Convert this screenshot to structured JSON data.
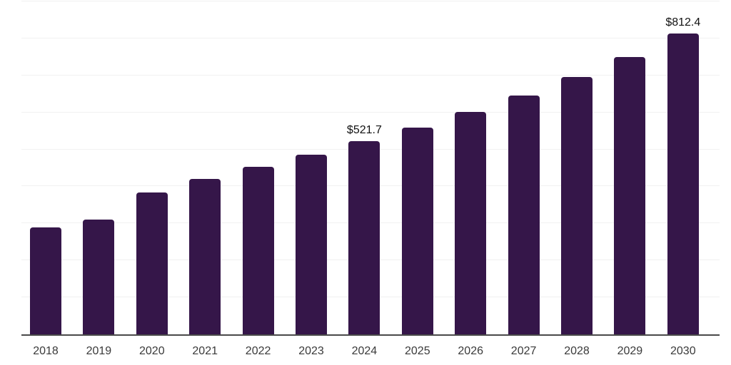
{
  "chart_data": {
    "type": "bar",
    "title": "",
    "xlabel": "",
    "ylabel": "",
    "categories": [
      "2018",
      "2019",
      "2020",
      "2021",
      "2022",
      "2023",
      "2024",
      "2025",
      "2026",
      "2027",
      "2028",
      "2029",
      "2030"
    ],
    "values": [
      290,
      310,
      383,
      421,
      452,
      485,
      521.7,
      558,
      601,
      645,
      695,
      750,
      812.4
    ],
    "annotations": [
      {
        "category": "2024",
        "text": "$521.7"
      },
      {
        "category": "2030",
        "text": "$812.4"
      }
    ],
    "ylim": [
      0,
      900
    ],
    "gridline_step": 100,
    "grid": true,
    "legend": false,
    "y_axis_labels_visible": false
  },
  "colors": {
    "bar": "#351649",
    "gridline": "#f1f1f1",
    "axis": "#4a4a4a",
    "tick_label": "#3a3a3a",
    "value_label": "#111111",
    "background": "#ffffff"
  }
}
